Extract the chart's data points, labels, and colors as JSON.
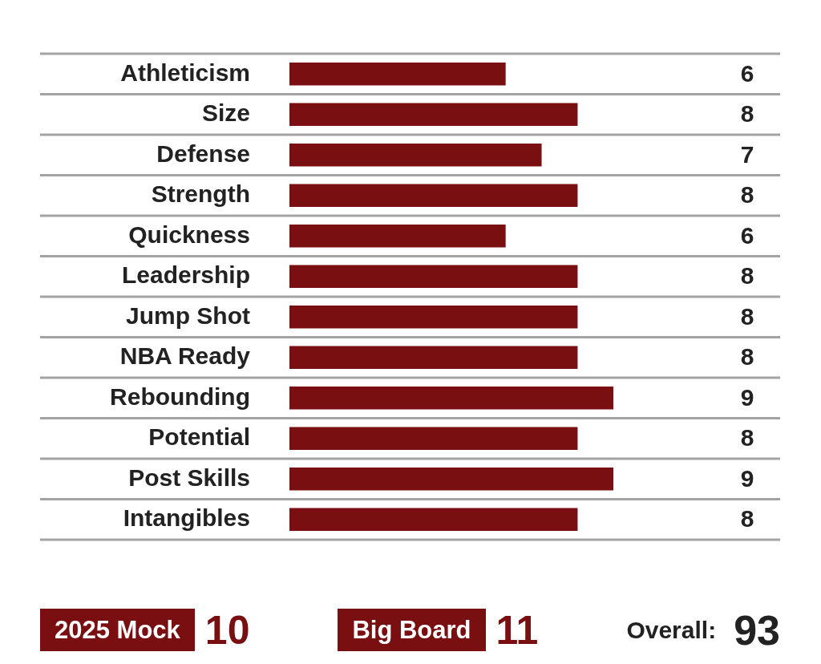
{
  "chart_data": {
    "type": "bar",
    "orientation": "horizontal",
    "categories": [
      "Athleticism",
      "Size",
      "Defense",
      "Strength",
      "Quickness",
      "Leadership",
      "Jump Shot",
      "NBA Ready",
      "Rebounding",
      "Potential",
      "Post Skills",
      "Intangibles"
    ],
    "values": [
      6,
      8,
      7,
      8,
      6,
      8,
      8,
      8,
      9,
      8,
      9,
      8
    ],
    "color": "#7a0f12",
    "data_labels": true,
    "grid": "y",
    "tick_labels": "y",
    "annotations": [
      "2025 Mock",
      "10",
      "Big Board",
      "11",
      "Overall:",
      "93"
    ]
  }
}
